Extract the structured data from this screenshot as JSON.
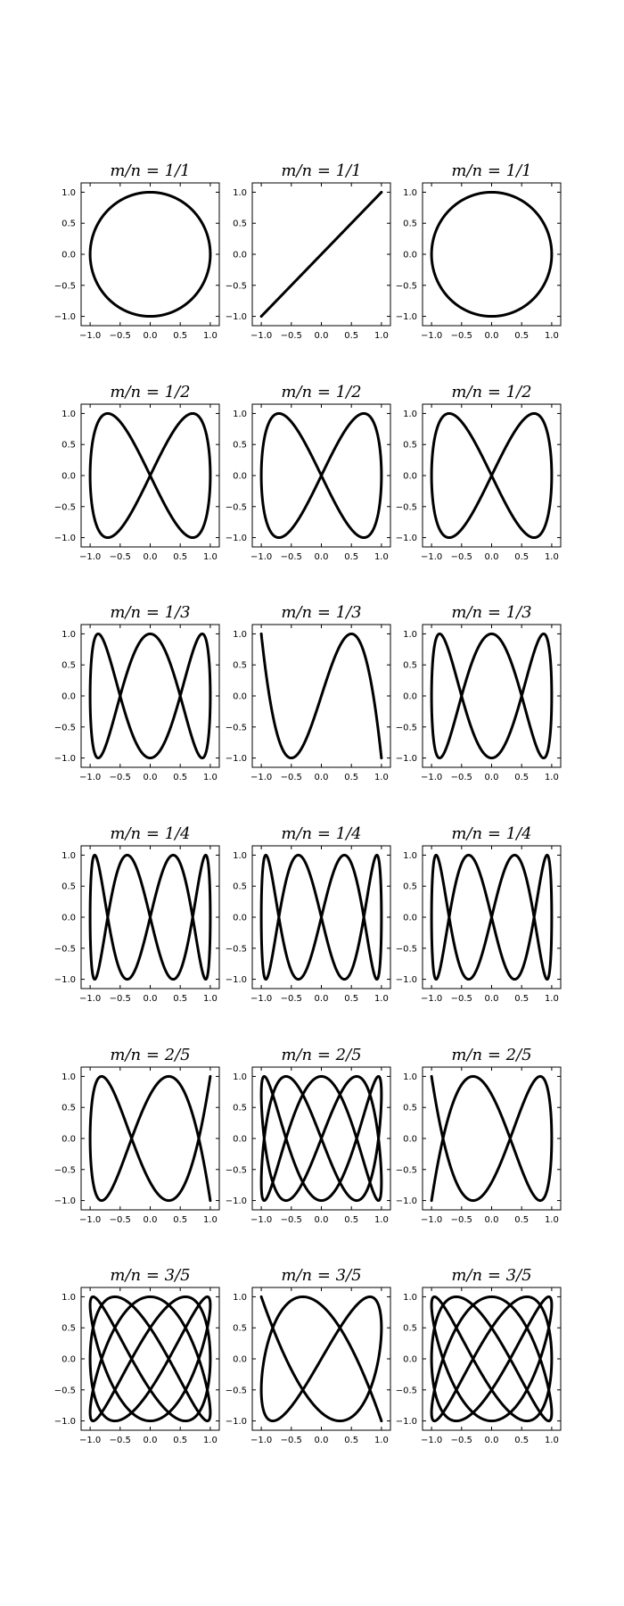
{
  "chart_data": [
    {
      "type": "line",
      "title": "m/n = 1/1",
      "m": 1,
      "n": 1,
      "phase": "-π/2",
      "xlim": [
        -1.15,
        1.15
      ],
      "ylim": [
        -1.15,
        1.15
      ],
      "x_ticks": [
        "−1.0",
        "−0.5",
        "0.0",
        "0.5",
        "1.0"
      ],
      "y_ticks": [
        "1.0",
        "0.5",
        "0.0",
        "−0.5",
        "−1.0"
      ],
      "grid": false
    },
    {
      "type": "line",
      "title": "m/n = 1/1",
      "m": 1,
      "n": 1,
      "phase": "0",
      "xlim": [
        -1.15,
        1.15
      ],
      "ylim": [
        -1.15,
        1.15
      ],
      "x_ticks": [
        "−1.0",
        "−0.5",
        "0.0",
        "0.5",
        "1.0"
      ],
      "y_ticks": [
        "1.0",
        "0.5",
        "0.0",
        "−0.5",
        "−1.0"
      ],
      "grid": false
    },
    {
      "type": "line",
      "title": "m/n = 1/1",
      "m": 1,
      "n": 1,
      "phase": "π/2",
      "xlim": [
        -1.15,
        1.15
      ],
      "ylim": [
        -1.15,
        1.15
      ],
      "x_ticks": [
        "−1.0",
        "−0.5",
        "0.0",
        "0.5",
        "1.0"
      ],
      "y_ticks": [
        "1.0",
        "0.5",
        "0.0",
        "−0.5",
        "−1.0"
      ],
      "grid": false
    },
    {
      "type": "line",
      "title": "m/n = 1/2",
      "m": 1,
      "n": 2,
      "phase": "-π/2",
      "xlim": [
        -1.15,
        1.15
      ],
      "ylim": [
        -1.15,
        1.15
      ],
      "x_ticks": [
        "−1.0",
        "−0.5",
        "0.0",
        "0.5",
        "1.0"
      ],
      "y_ticks": [
        "1.0",
        "0.5",
        "0.0",
        "−0.5",
        "−1.0"
      ],
      "grid": false
    },
    {
      "type": "line",
      "title": "m/n = 1/2",
      "m": 1,
      "n": 2,
      "phase": "0",
      "xlim": [
        -1.15,
        1.15
      ],
      "ylim": [
        -1.15,
        1.15
      ],
      "x_ticks": [
        "−1.0",
        "−0.5",
        "0.0",
        "0.5",
        "1.0"
      ],
      "y_ticks": [
        "1.0",
        "0.5",
        "0.0",
        "−0.5",
        "−1.0"
      ],
      "grid": false
    },
    {
      "type": "line",
      "title": "m/n = 1/2",
      "m": 1,
      "n": 2,
      "phase": "π/2",
      "xlim": [
        -1.15,
        1.15
      ],
      "ylim": [
        -1.15,
        1.15
      ],
      "x_ticks": [
        "−1.0",
        "−0.5",
        "0.0",
        "0.5",
        "1.0"
      ],
      "y_ticks": [
        "1.0",
        "0.5",
        "0.0",
        "−0.5",
        "−1.0"
      ],
      "grid": false
    },
    {
      "type": "line",
      "title": "m/n = 1/3",
      "m": 1,
      "n": 3,
      "phase": "-π/2",
      "xlim": [
        -1.15,
        1.15
      ],
      "ylim": [
        -1.15,
        1.15
      ],
      "x_ticks": [
        "−1.0",
        "−0.5",
        "0.0",
        "0.5",
        "1.0"
      ],
      "y_ticks": [
        "1.0",
        "0.5",
        "0.0",
        "−0.5",
        "−1.0"
      ],
      "grid": false
    },
    {
      "type": "line",
      "title": "m/n = 1/3",
      "m": 1,
      "n": 3,
      "phase": "0",
      "xlim": [
        -1.15,
        1.15
      ],
      "ylim": [
        -1.15,
        1.15
      ],
      "x_ticks": [
        "−1.0",
        "−0.5",
        "0.0",
        "0.5",
        "1.0"
      ],
      "y_ticks": [
        "1.0",
        "0.5",
        "0.0",
        "−0.5",
        "−1.0"
      ],
      "grid": false
    },
    {
      "type": "line",
      "title": "m/n = 1/3",
      "m": 1,
      "n": 3,
      "phase": "π/2",
      "xlim": [
        -1.15,
        1.15
      ],
      "ylim": [
        -1.15,
        1.15
      ],
      "x_ticks": [
        "−1.0",
        "−0.5",
        "0.0",
        "0.5",
        "1.0"
      ],
      "y_ticks": [
        "1.0",
        "0.5",
        "0.0",
        "−0.5",
        "−1.0"
      ],
      "grid": false
    },
    {
      "type": "line",
      "title": "m/n = 1/4",
      "m": 1,
      "n": 4,
      "phase": "-π/2",
      "xlim": [
        -1.15,
        1.15
      ],
      "ylim": [
        -1.15,
        1.15
      ],
      "x_ticks": [
        "−1.0",
        "−0.5",
        "0.0",
        "0.5",
        "1.0"
      ],
      "y_ticks": [
        "1.0",
        "0.5",
        "0.0",
        "−0.5",
        "−1.0"
      ],
      "grid": false
    },
    {
      "type": "line",
      "title": "m/n = 1/4",
      "m": 1,
      "n": 4,
      "phase": "0",
      "xlim": [
        -1.15,
        1.15
      ],
      "ylim": [
        -1.15,
        1.15
      ],
      "x_ticks": [
        "−1.0",
        "−0.5",
        "0.0",
        "0.5",
        "1.0"
      ],
      "y_ticks": [
        "1.0",
        "0.5",
        "0.0",
        "−0.5",
        "−1.0"
      ],
      "grid": false
    },
    {
      "type": "line",
      "title": "m/n = 1/4",
      "m": 1,
      "n": 4,
      "phase": "π/2",
      "xlim": [
        -1.15,
        1.15
      ],
      "ylim": [
        -1.15,
        1.15
      ],
      "x_ticks": [
        "−1.0",
        "−0.5",
        "0.0",
        "0.5",
        "1.0"
      ],
      "y_ticks": [
        "1.0",
        "0.5",
        "0.0",
        "−0.5",
        "−1.0"
      ],
      "grid": false
    },
    {
      "type": "line",
      "title": "m/n = 2/5",
      "m": 2,
      "n": 5,
      "phase": "-π/2",
      "xlim": [
        -1.15,
        1.15
      ],
      "ylim": [
        -1.15,
        1.15
      ],
      "x_ticks": [
        "−1.0",
        "−0.5",
        "0.0",
        "0.5",
        "1.0"
      ],
      "y_ticks": [
        "1.0",
        "0.5",
        "0.0",
        "−0.5",
        "−1.0"
      ],
      "grid": false
    },
    {
      "type": "line",
      "title": "m/n = 2/5",
      "m": 2,
      "n": 5,
      "phase": "0",
      "xlim": [
        -1.15,
        1.15
      ],
      "ylim": [
        -1.15,
        1.15
      ],
      "x_ticks": [
        "−1.0",
        "−0.5",
        "0.0",
        "0.5",
        "1.0"
      ],
      "y_ticks": [
        "1.0",
        "0.5",
        "0.0",
        "−0.5",
        "−1.0"
      ],
      "grid": false
    },
    {
      "type": "line",
      "title": "m/n = 2/5",
      "m": 2,
      "n": 5,
      "phase": "π/2",
      "xlim": [
        -1.15,
        1.15
      ],
      "ylim": [
        -1.15,
        1.15
      ],
      "x_ticks": [
        "−1.0",
        "−0.5",
        "0.0",
        "0.5",
        "1.0"
      ],
      "y_ticks": [
        "1.0",
        "0.5",
        "0.0",
        "−0.5",
        "−1.0"
      ],
      "grid": false
    },
    {
      "type": "line",
      "title": "m/n = 3/5",
      "m": 3,
      "n": 5,
      "phase": "-π/2",
      "xlim": [
        -1.15,
        1.15
      ],
      "ylim": [
        -1.15,
        1.15
      ],
      "x_ticks": [
        "−1.0",
        "−0.5",
        "0.0",
        "0.5",
        "1.0"
      ],
      "y_ticks": [
        "1.0",
        "0.5",
        "0.0",
        "−0.5",
        "−1.0"
      ],
      "grid": false
    },
    {
      "type": "line",
      "title": "m/n = 3/5",
      "m": 3,
      "n": 5,
      "phase": "0",
      "xlim": [
        -1.15,
        1.15
      ],
      "ylim": [
        -1.15,
        1.15
      ],
      "x_ticks": [
        "−1.0",
        "−0.5",
        "0.0",
        "0.5",
        "1.0"
      ],
      "y_ticks": [
        "1.0",
        "0.5",
        "0.0",
        "−0.5",
        "−1.0"
      ],
      "grid": false
    },
    {
      "type": "line",
      "title": "m/n = 3/5",
      "m": 3,
      "n": 5,
      "phase": "π/2",
      "xlim": [
        -1.15,
        1.15
      ],
      "ylim": [
        -1.15,
        1.15
      ],
      "x_ticks": [
        "−1.0",
        "−0.5",
        "0.0",
        "0.5",
        "1.0"
      ],
      "y_ticks": [
        "1.0",
        "0.5",
        "0.0",
        "−0.5",
        "−1.0"
      ],
      "grid": false
    }
  ],
  "colors": {
    "line": "#000000",
    "axes": "#000000",
    "background": "#ffffff"
  }
}
